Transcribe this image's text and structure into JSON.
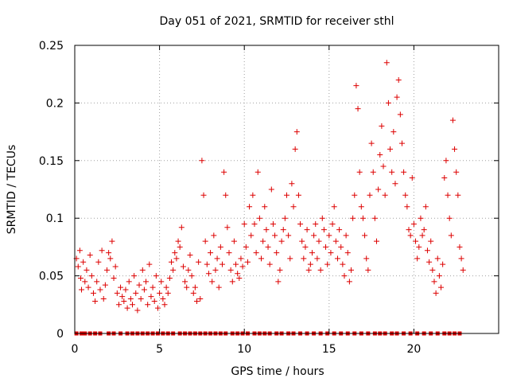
{
  "chart_data": {
    "type": "scatter",
    "title": "Day 051 of 2021, SRMTID for receiver sthl",
    "xlabel": "GPS time / hours",
    "ylabel": "SRMTID / TECUs",
    "xlim": [
      0,
      25
    ],
    "ylim": [
      0,
      0.25
    ],
    "x_ticks": [
      0,
      5,
      10,
      15,
      20
    ],
    "x_tick_labels": [
      "0",
      "5",
      "10",
      "15",
      "20"
    ],
    "y_ticks": [
      0,
      0.05,
      0.1,
      0.15,
      0.2,
      0.25
    ],
    "y_tick_labels": [
      "0",
      "0.05",
      "0.1",
      "0.15",
      "0.2",
      "0.25"
    ],
    "grid": true,
    "marker": "+",
    "color": "#dd0000",
    "zero_marker": "square",
    "series": [
      {
        "name": "SRMTID",
        "points": [
          [
            0.1,
            0.065
          ],
          [
            0.2,
            0.058
          ],
          [
            0.3,
            0.072
          ],
          [
            0.35,
            0.048
          ],
          [
            0.4,
            0.038
          ],
          [
            0.5,
            0.062
          ],
          [
            0.6,
            0.045
          ],
          [
            0.7,
            0.055
          ],
          [
            0.8,
            0.04
          ],
          [
            0.9,
            0.068
          ],
          [
            1.0,
            0.05
          ],
          [
            1.1,
            0.035
          ],
          [
            1.2,
            0.028
          ],
          [
            1.3,
            0.045
          ],
          [
            1.4,
            0.062
          ],
          [
            1.5,
            0.038
          ],
          [
            1.6,
            0.072
          ],
          [
            1.7,
            0.03
          ],
          [
            1.8,
            0.042
          ],
          [
            1.9,
            0.055
          ],
          [
            2.0,
            0.07
          ],
          [
            2.1,
            0.065
          ],
          [
            2.2,
            0.08
          ],
          [
            2.3,
            0.048
          ],
          [
            2.4,
            0.058
          ],
          [
            2.5,
            0.035
          ],
          [
            2.6,
            0.025
          ],
          [
            2.7,
            0.04
          ],
          [
            2.8,
            0.032
          ],
          [
            2.9,
            0.028
          ],
          [
            3.0,
            0.038
          ],
          [
            3.1,
            0.022
          ],
          [
            3.2,
            0.045
          ],
          [
            3.3,
            0.03
          ],
          [
            3.4,
            0.025
          ],
          [
            3.5,
            0.05
          ],
          [
            3.6,
            0.035
          ],
          [
            3.7,
            0.02
          ],
          [
            3.8,
            0.042
          ],
          [
            3.9,
            0.03
          ],
          [
            4.0,
            0.055
          ],
          [
            4.1,
            0.038
          ],
          [
            4.2,
            0.045
          ],
          [
            4.3,
            0.025
          ],
          [
            4.4,
            0.06
          ],
          [
            4.5,
            0.032
          ],
          [
            4.6,
            0.04
          ],
          [
            4.7,
            0.028
          ],
          [
            4.8,
            0.05
          ],
          [
            4.9,
            0.022
          ],
          [
            5.0,
            0.035
          ],
          [
            5.1,
            0.045
          ],
          [
            5.2,
            0.03
          ],
          [
            5.3,
            0.025
          ],
          [
            5.4,
            0.04
          ],
          [
            5.5,
            0.035
          ],
          [
            5.6,
            0.048
          ],
          [
            5.7,
            0.062
          ],
          [
            5.8,
            0.055
          ],
          [
            5.9,
            0.07
          ],
          [
            6.0,
            0.065
          ],
          [
            6.1,
            0.08
          ],
          [
            6.2,
            0.075
          ],
          [
            6.3,
            0.092
          ],
          [
            6.4,
            0.058
          ],
          [
            6.5,
            0.045
          ],
          [
            6.6,
            0.04
          ],
          [
            6.7,
            0.055
          ],
          [
            6.8,
            0.068
          ],
          [
            6.9,
            0.05
          ],
          [
            7.0,
            0.035
          ],
          [
            7.1,
            0.04
          ],
          [
            7.2,
            0.028
          ],
          [
            7.3,
            0.062
          ],
          [
            7.4,
            0.03
          ],
          [
            7.5,
            0.15
          ],
          [
            7.6,
            0.12
          ],
          [
            7.7,
            0.08
          ],
          [
            7.8,
            0.06
          ],
          [
            7.9,
            0.052
          ],
          [
            8.0,
            0.07
          ],
          [
            8.1,
            0.045
          ],
          [
            8.2,
            0.085
          ],
          [
            8.3,
            0.055
          ],
          [
            8.4,
            0.065
          ],
          [
            8.5,
            0.04
          ],
          [
            8.6,
            0.075
          ],
          [
            8.7,
            0.06
          ],
          [
            8.8,
            0.14
          ],
          [
            8.9,
            0.12
          ],
          [
            9.0,
            0.092
          ],
          [
            9.1,
            0.07
          ],
          [
            9.2,
            0.055
          ],
          [
            9.3,
            0.045
          ],
          [
            9.4,
            0.08
          ],
          [
            9.5,
            0.06
          ],
          [
            9.6,
            0.052
          ],
          [
            9.7,
            0.048
          ],
          [
            9.8,
            0.065
          ],
          [
            9.9,
            0.058
          ],
          [
            10.0,
            0.095
          ],
          [
            10.1,
            0.075
          ],
          [
            10.2,
            0.062
          ],
          [
            10.3,
            0.11
          ],
          [
            10.4,
            0.085
          ],
          [
            10.5,
            0.12
          ],
          [
            10.6,
            0.095
          ],
          [
            10.7,
            0.07
          ],
          [
            10.8,
            0.14
          ],
          [
            10.9,
            0.1
          ],
          [
            11.0,
            0.065
          ],
          [
            11.1,
            0.08
          ],
          [
            11.2,
            0.11
          ],
          [
            11.3,
            0.09
          ],
          [
            11.4,
            0.075
          ],
          [
            11.5,
            0.06
          ],
          [
            11.6,
            0.125
          ],
          [
            11.7,
            0.095
          ],
          [
            11.8,
            0.085
          ],
          [
            11.9,
            0.07
          ],
          [
            12.0,
            0.045
          ],
          [
            12.1,
            0.055
          ],
          [
            12.2,
            0.08
          ],
          [
            12.3,
            0.09
          ],
          [
            12.4,
            0.1
          ],
          [
            12.5,
            0.12
          ],
          [
            12.6,
            0.085
          ],
          [
            12.7,
            0.065
          ],
          [
            12.8,
            0.13
          ],
          [
            12.9,
            0.11
          ],
          [
            13.0,
            0.16
          ],
          [
            13.1,
            0.175
          ],
          [
            13.2,
            0.12
          ],
          [
            13.3,
            0.095
          ],
          [
            13.4,
            0.08
          ],
          [
            13.5,
            0.065
          ],
          [
            13.6,
            0.075
          ],
          [
            13.7,
            0.09
          ],
          [
            13.8,
            0.055
          ],
          [
            13.9,
            0.06
          ],
          [
            14.0,
            0.07
          ],
          [
            14.1,
            0.085
          ],
          [
            14.2,
            0.095
          ],
          [
            14.3,
            0.065
          ],
          [
            14.4,
            0.08
          ],
          [
            14.5,
            0.055
          ],
          [
            14.6,
            0.1
          ],
          [
            14.7,
            0.09
          ],
          [
            14.8,
            0.075
          ],
          [
            14.9,
            0.06
          ],
          [
            15.0,
            0.085
          ],
          [
            15.1,
            0.07
          ],
          [
            15.2,
            0.095
          ],
          [
            15.3,
            0.11
          ],
          [
            15.4,
            0.08
          ],
          [
            15.5,
            0.065
          ],
          [
            15.6,
            0.09
          ],
          [
            15.7,
            0.075
          ],
          [
            15.8,
            0.06
          ],
          [
            15.9,
            0.05
          ],
          [
            16.0,
            0.085
          ],
          [
            16.1,
            0.07
          ],
          [
            16.2,
            0.045
          ],
          [
            16.3,
            0.055
          ],
          [
            16.4,
            0.1
          ],
          [
            16.5,
            0.12
          ],
          [
            16.6,
            0.215
          ],
          [
            16.7,
            0.195
          ],
          [
            16.8,
            0.14
          ],
          [
            16.9,
            0.11
          ],
          [
            17.0,
            0.1
          ],
          [
            17.1,
            0.085
          ],
          [
            17.2,
            0.065
          ],
          [
            17.3,
            0.055
          ],
          [
            17.4,
            0.12
          ],
          [
            17.5,
            0.165
          ],
          [
            17.6,
            0.14
          ],
          [
            17.7,
            0.1
          ],
          [
            17.8,
            0.08
          ],
          [
            17.9,
            0.125
          ],
          [
            18.0,
            0.155
          ],
          [
            18.1,
            0.18
          ],
          [
            18.2,
            0.145
          ],
          [
            18.3,
            0.12
          ],
          [
            18.4,
            0.235
          ],
          [
            18.5,
            0.2
          ],
          [
            18.6,
            0.16
          ],
          [
            18.7,
            0.14
          ],
          [
            18.8,
            0.175
          ],
          [
            18.9,
            0.13
          ],
          [
            19.0,
            0.205
          ],
          [
            19.1,
            0.22
          ],
          [
            19.2,
            0.19
          ],
          [
            19.3,
            0.165
          ],
          [
            19.4,
            0.14
          ],
          [
            19.5,
            0.12
          ],
          [
            19.6,
            0.11
          ],
          [
            19.7,
            0.09
          ],
          [
            19.8,
            0.085
          ],
          [
            19.9,
            0.135
          ],
          [
            20.0,
            0.095
          ],
          [
            20.1,
            0.08
          ],
          [
            20.2,
            0.065
          ],
          [
            20.3,
            0.075
          ],
          [
            20.4,
            0.1
          ],
          [
            20.5,
            0.085
          ],
          [
            20.6,
            0.09
          ],
          [
            20.7,
            0.11
          ],
          [
            20.8,
            0.072
          ],
          [
            20.9,
            0.062
          ],
          [
            21.0,
            0.08
          ],
          [
            21.1,
            0.055
          ],
          [
            21.2,
            0.045
          ],
          [
            21.3,
            0.035
          ],
          [
            21.4,
            0.065
          ],
          [
            21.5,
            0.05
          ],
          [
            21.6,
            0.04
          ],
          [
            21.7,
            0.06
          ],
          [
            21.8,
            0.135
          ],
          [
            21.9,
            0.15
          ],
          [
            22.0,
            0.12
          ],
          [
            22.1,
            0.1
          ],
          [
            22.2,
            0.085
          ],
          [
            22.3,
            0.185
          ],
          [
            22.4,
            0.16
          ],
          [
            22.5,
            0.14
          ],
          [
            22.6,
            0.12
          ],
          [
            22.7,
            0.075
          ],
          [
            22.8,
            0.065
          ],
          [
            22.9,
            0.055
          ]
        ]
      }
    ],
    "zero_points": [
      0.1,
      0.4,
      0.6,
      0.9,
      1.2,
      1.5,
      2.0,
      2.3,
      2.7,
      3.1,
      3.4,
      3.7,
      4.0,
      4.3,
      4.6,
      4.9,
      5.2,
      5.5,
      5.8,
      6.2,
      6.5,
      6.8,
      7.1,
      7.4,
      7.7,
      8.0,
      8.3,
      8.6,
      8.9,
      9.3,
      9.6,
      9.9,
      10.2,
      10.6,
      10.9,
      11.2,
      11.5,
      11.9,
      12.2,
      12.6,
      12.9,
      13.3,
      13.7,
      14.1,
      14.5,
      14.9,
      15.3,
      15.7,
      16.1,
      16.5,
      16.9,
      17.3,
      17.7,
      18.0,
      18.3,
      18.7,
      19.0,
      19.4,
      19.8,
      20.2,
      20.6,
      21.0,
      21.4,
      21.8,
      22.1,
      22.4,
      22.7
    ]
  }
}
